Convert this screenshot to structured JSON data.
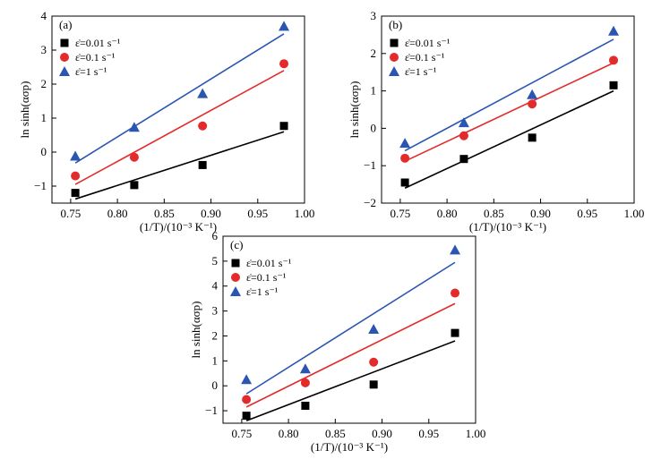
{
  "chart_data": [
    {
      "panel": "(a)",
      "type": "scatter",
      "xlabel": "(1/T)/(10⁻³ K⁻¹)",
      "ylabel": "ln sinh(ασp)",
      "xlim": [
        0.73,
        1.0
      ],
      "ylim": [
        -1.5,
        4
      ],
      "xticks": [
        0.75,
        0.8,
        0.85,
        0.9,
        0.95,
        1.0
      ],
      "xtick_labels": [
        "0.75",
        "0.80",
        "0.85",
        "0.90",
        "0.95",
        "1.00"
      ],
      "yticks": [
        -1,
        0,
        1,
        2,
        3,
        4
      ],
      "ytick_labels": [
        "−1",
        "0",
        "1",
        "2",
        "3",
        "4"
      ],
      "legend_position": "top-left",
      "series": [
        {
          "name": "ε̇=0.01 s⁻¹",
          "marker": "square",
          "color": "#000000",
          "x": [
            0.755,
            0.818,
            0.891,
            0.978
          ],
          "y": [
            -1.2,
            -0.97,
            -0.38,
            0.77
          ],
          "fit": [
            [
              0.755,
              -1.38
            ],
            [
              0.978,
              0.6
            ]
          ]
        },
        {
          "name": "ε̇=0.1 s⁻¹",
          "marker": "circle",
          "color": "#e32b2b",
          "x": [
            0.755,
            0.818,
            0.891,
            0.978
          ],
          "y": [
            -0.7,
            -0.15,
            0.77,
            2.6
          ],
          "fit": [
            [
              0.755,
              -0.95
            ],
            [
              0.978,
              2.4
            ]
          ]
        },
        {
          "name": "ε̇=1 s⁻¹",
          "marker": "triangle",
          "color": "#2a55b0",
          "x": [
            0.755,
            0.818,
            0.891,
            0.978
          ],
          "y": [
            -0.12,
            0.73,
            1.72,
            3.7
          ],
          "fit": [
            [
              0.755,
              -0.32
            ],
            [
              0.978,
              3.48
            ]
          ]
        }
      ]
    },
    {
      "panel": "(b)",
      "type": "scatter",
      "xlabel": "(1/T)/(10⁻³ K⁻¹)",
      "ylabel": "ln sinh(ασp)",
      "xlim": [
        0.73,
        1.0
      ],
      "ylim": [
        -2,
        3
      ],
      "xticks": [
        0.75,
        0.8,
        0.85,
        0.9,
        0.95,
        1.0
      ],
      "xtick_labels": [
        "0.75",
        "0.80",
        "0.85",
        "0.90",
        "0.95",
        "1.00"
      ],
      "yticks": [
        -2,
        -1,
        0,
        1,
        2,
        3
      ],
      "ytick_labels": [
        "−2",
        "−1",
        "0",
        "1",
        "2",
        "3"
      ],
      "legend_position": "top-left",
      "series": [
        {
          "name": "ε̇=0.01 s⁻¹",
          "marker": "square",
          "color": "#000000",
          "x": [
            0.755,
            0.818,
            0.891,
            0.978
          ],
          "y": [
            -1.45,
            -0.82,
            -0.25,
            1.15
          ],
          "fit": [
            [
              0.755,
              -1.6
            ],
            [
              0.978,
              1.0
            ]
          ]
        },
        {
          "name": "ε̇=0.1 s⁻¹",
          "marker": "circle",
          "color": "#e32b2b",
          "x": [
            0.755,
            0.818,
            0.891,
            0.978
          ],
          "y": [
            -0.8,
            -0.2,
            0.65,
            1.82
          ],
          "fit": [
            [
              0.755,
              -0.88
            ],
            [
              0.978,
              1.75
            ]
          ]
        },
        {
          "name": "ε̇=1 s⁻¹",
          "marker": "triangle",
          "color": "#2a55b0",
          "x": [
            0.755,
            0.818,
            0.891,
            0.978
          ],
          "y": [
            -0.4,
            0.15,
            0.9,
            2.6
          ],
          "fit": [
            [
              0.755,
              -0.6
            ],
            [
              0.978,
              2.38
            ]
          ]
        }
      ]
    },
    {
      "panel": "(c)",
      "type": "scatter",
      "xlabel": "(1/T)/(10⁻³ K⁻¹)",
      "ylabel": "ln sinh(ασp)",
      "xlim": [
        0.73,
        1.0
      ],
      "ylim": [
        -1.5,
        6
      ],
      "xticks": [
        0.75,
        0.8,
        0.85,
        0.9,
        0.95,
        1.0
      ],
      "xtick_labels": [
        "0.75",
        "0.80",
        "0.85",
        "0.90",
        "0.95",
        "1.00"
      ],
      "yticks": [
        -1,
        0,
        1,
        2,
        3,
        4,
        5,
        6
      ],
      "ytick_labels": [
        "−1",
        "0",
        "1",
        "2",
        "3",
        "4",
        "5",
        "6"
      ],
      "legend_position": "top-left",
      "series": [
        {
          "name": "ε̇=0.01 s⁻¹",
          "marker": "square",
          "color": "#000000",
          "x": [
            0.755,
            0.818,
            0.891,
            0.978
          ],
          "y": [
            -1.2,
            -0.8,
            0.05,
            2.12
          ],
          "fit": [
            [
              0.755,
              -1.4
            ],
            [
              0.978,
              1.8
            ]
          ]
        },
        {
          "name": "ε̇=0.1 s⁻¹",
          "marker": "circle",
          "color": "#e32b2b",
          "x": [
            0.755,
            0.818,
            0.891,
            0.978
          ],
          "y": [
            -0.55,
            0.12,
            0.95,
            3.72
          ],
          "fit": [
            [
              0.755,
              -0.85
            ],
            [
              0.978,
              3.3
            ]
          ]
        },
        {
          "name": "ε̇=1 s⁻¹",
          "marker": "triangle",
          "color": "#2a55b0",
          "x": [
            0.755,
            0.818,
            0.891,
            0.978
          ],
          "y": [
            0.25,
            0.68,
            2.27,
            5.45
          ],
          "fit": [
            [
              0.755,
              -0.32
            ],
            [
              0.978,
              4.95
            ]
          ]
        }
      ]
    }
  ]
}
